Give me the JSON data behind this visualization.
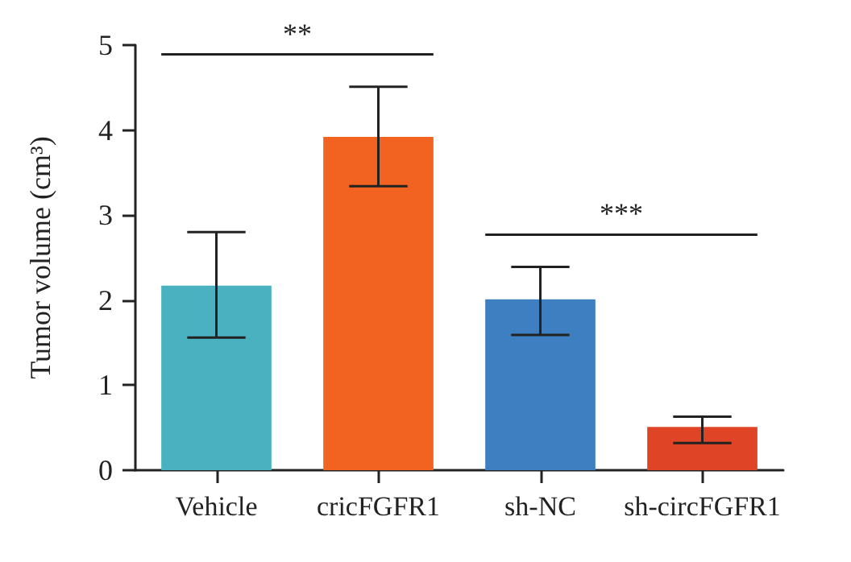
{
  "chart_data": {
    "type": "bar",
    "ylabel": "Tumor volume (cm³)",
    "categories": [
      "Vehicle",
      "cricFGFR1",
      "sh-NC",
      "sh-circFGFR1"
    ],
    "values": [
      2.17,
      3.92,
      2.01,
      0.51
    ],
    "colors": [
      "#4ab1c0",
      "#f26322",
      "#3e7fc1",
      "#e04426"
    ],
    "errors": [
      [
        1.56,
        2.8
      ],
      [
        3.34,
        4.51
      ],
      [
        1.59,
        2.39
      ],
      [
        0.32,
        0.63
      ]
    ],
    "ylim": [
      0,
      5
    ],
    "yticks": [
      0,
      1,
      2,
      3,
      4,
      5
    ],
    "grid": false,
    "annotations": [
      "**",
      "***"
    ]
  }
}
